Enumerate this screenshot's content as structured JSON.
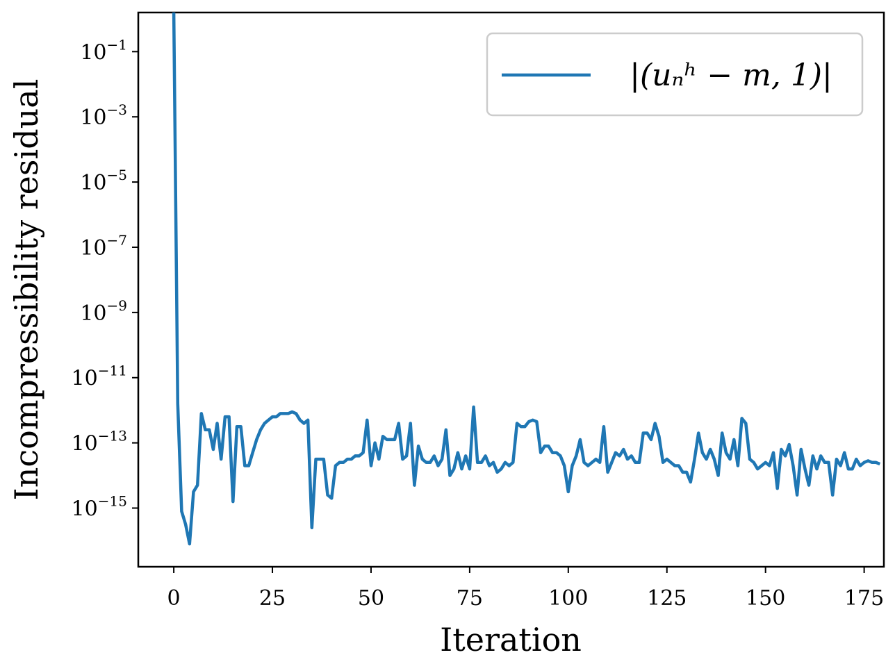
{
  "chart_data": {
    "type": "line",
    "title": "",
    "xlabel": "Iteration",
    "ylabel": "Incompressibility residual",
    "xlim": [
      -9,
      180
    ],
    "ylim_log10": [
      -16.8,
      0.2
    ],
    "yscale": "log",
    "grid": false,
    "legend_position": "top-right",
    "x_ticks": [
      "0",
      "25",
      "50",
      "75",
      "100",
      "125",
      "150",
      "175"
    ],
    "x_tick_values": [
      0,
      25,
      50,
      75,
      100,
      125,
      150,
      175
    ],
    "y_ticks": [
      {
        "base": "10",
        "exp": "−1",
        "log10": -1
      },
      {
        "base": "10",
        "exp": "−3",
        "log10": -3
      },
      {
        "base": "10",
        "exp": "−5",
        "log10": -5
      },
      {
        "base": "10",
        "exp": "−7",
        "log10": -7
      },
      {
        "base": "10",
        "exp": "−9",
        "log10": -9
      },
      {
        "base": "10",
        "exp": "−11",
        "log10": -11
      },
      {
        "base": "10",
        "exp": "−13",
        "log10": -13
      },
      {
        "base": "10",
        "exp": "−15",
        "log10": -15
      }
    ],
    "series": [
      {
        "name": "|(u_n^h − m, 1)|",
        "legend_label": "|(uₙʰ − m, 1)|",
        "color": "#1f77b4",
        "x": [
          0,
          1,
          2,
          3,
          4,
          5,
          6,
          7,
          8,
          9,
          10,
          11,
          12,
          13,
          14,
          15,
          16,
          17,
          18,
          19,
          20,
          21,
          22,
          23,
          24,
          25,
          26,
          27,
          28,
          29,
          30,
          31,
          32,
          33,
          34,
          35,
          36,
          37,
          38,
          39,
          40,
          41,
          42,
          43,
          44,
          45,
          46,
          47,
          48,
          49,
          50,
          51,
          52,
          53,
          54,
          55,
          56,
          57,
          58,
          59,
          60,
          61,
          62,
          63,
          64,
          65,
          66,
          67,
          68,
          69,
          70,
          71,
          72,
          73,
          74,
          75,
          76,
          77,
          78,
          79,
          80,
          81,
          82,
          83,
          84,
          85,
          86,
          87,
          88,
          89,
          90,
          91,
          92,
          93,
          94,
          95,
          96,
          97,
          98,
          99,
          100,
          101,
          102,
          103,
          104,
          105,
          106,
          107,
          108,
          109,
          110,
          111,
          112,
          113,
          114,
          115,
          116,
          117,
          118,
          119,
          120,
          121,
          122,
          123,
          124,
          125,
          126,
          127,
          128,
          129,
          130,
          131,
          132,
          133,
          134,
          135,
          136,
          137,
          138,
          139,
          140,
          141,
          142,
          143,
          144,
          145,
          146,
          147,
          148,
          149,
          150,
          151,
          152,
          153,
          154,
          155,
          156,
          157,
          158,
          159,
          160,
          161,
          162,
          163,
          164,
          165,
          166,
          167,
          168,
          169,
          170,
          171,
          172,
          173,
          174,
          175,
          176,
          177,
          178,
          179
        ],
        "log10_values": [
          0.2,
          -11.8,
          -15.1,
          -15.5,
          -16.1,
          -14.5,
          -14.3,
          -12.1,
          -12.6,
          -12.6,
          -13.2,
          -12.4,
          -13.5,
          -12.2,
          -12.2,
          -14.8,
          -12.5,
          -12.5,
          -13.7,
          -13.7,
          -13.3,
          -12.9,
          -12.6,
          -12.4,
          -12.3,
          -12.2,
          -12.2,
          -12.1,
          -12.1,
          -12.1,
          -12.05,
          -12.1,
          -12.3,
          -12.4,
          -12.3,
          -15.6,
          -13.5,
          -13.5,
          -13.5,
          -14.6,
          -14.7,
          -13.7,
          -13.6,
          -13.6,
          -13.5,
          -13.5,
          -13.4,
          -13.4,
          -13.3,
          -12.3,
          -13.7,
          -13.0,
          -13.5,
          -12.8,
          -12.9,
          -12.9,
          -12.9,
          -12.4,
          -13.5,
          -13.4,
          -12.4,
          -14.3,
          -13.1,
          -13.5,
          -13.6,
          -13.6,
          -13.4,
          -13.7,
          -13.5,
          -12.6,
          -14.0,
          -13.8,
          -13.3,
          -13.8,
          -13.4,
          -13.8,
          -11.9,
          -13.6,
          -13.6,
          -13.4,
          -13.7,
          -13.6,
          -13.9,
          -13.8,
          -13.6,
          -13.7,
          -13.6,
          -12.4,
          -12.5,
          -12.5,
          -12.35,
          -12.3,
          -12.35,
          -13.3,
          -13.1,
          -13.1,
          -13.3,
          -13.3,
          -13.4,
          -13.7,
          -14.5,
          -13.7,
          -13.4,
          -12.9,
          -13.6,
          -13.7,
          -13.6,
          -13.5,
          -13.6,
          -12.5,
          -13.9,
          -13.6,
          -13.3,
          -13.4,
          -13.2,
          -13.5,
          -13.4,
          -13.6,
          -13.6,
          -12.7,
          -12.7,
          -12.9,
          -12.4,
          -12.8,
          -13.6,
          -13.5,
          -13.6,
          -13.7,
          -13.7,
          -13.9,
          -13.9,
          -14.2,
          -13.5,
          -12.7,
          -13.3,
          -13.5,
          -13.2,
          -13.5,
          -14.0,
          -12.7,
          -13.3,
          -13.5,
          -12.9,
          -13.7,
          -12.25,
          -12.4,
          -13.5,
          -13.6,
          -13.8,
          -13.7,
          -13.6,
          -13.7,
          -13.3,
          -14.4,
          -13.2,
          -13.4,
          -13.05,
          -13.7,
          -14.6,
          -13.2,
          -13.8,
          -14.3,
          -13.4,
          -13.8,
          -13.4,
          -13.6,
          -13.6,
          -14.6,
          -13.5,
          -13.7,
          -13.3,
          -13.8,
          -13.8,
          -13.5,
          -13.7,
          -13.6,
          -13.55,
          -13.6,
          -13.6,
          -13.65
        ]
      }
    ]
  }
}
